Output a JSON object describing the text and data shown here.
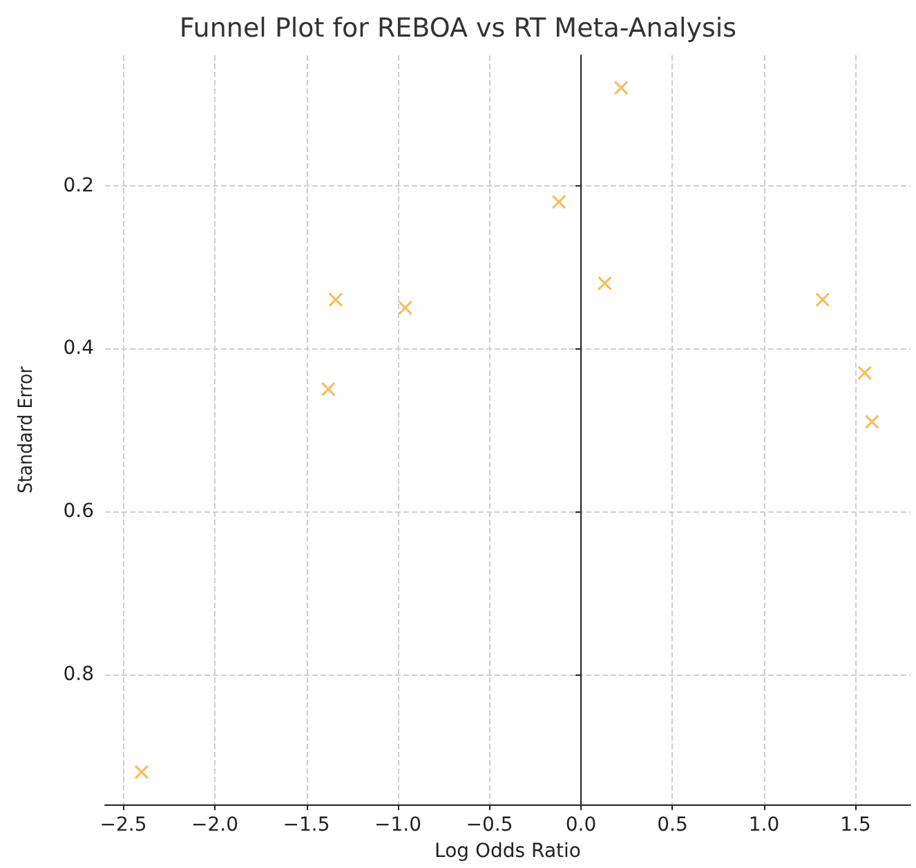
{
  "chart_data": {
    "type": "scatter",
    "title": "Funnel Plot for REBOA vs RT Meta-Analysis",
    "xlabel": "Log Odds Ratio",
    "ylabel": "Standard Error",
    "x": [
      -2.4,
      -1.38,
      -1.34,
      -0.96,
      -0.12,
      0.13,
      0.22,
      1.32,
      1.55,
      1.59
    ],
    "series": [
      {
        "color": "#f0b030",
        "values": [
          0.92,
          0.45,
          0.34,
          0.35,
          0.22,
          0.32,
          0.08,
          0.34,
          0.43,
          0.49
        ]
      }
    ],
    "xlim": [
      -2.6,
      1.8
    ],
    "xticks": [
      {
        "value": -2.5,
        "label": "−2.5"
      },
      {
        "value": -2.0,
        "label": "−2.0"
      },
      {
        "value": -1.5,
        "label": "−1.5"
      },
      {
        "value": -1.0,
        "label": "−1.0"
      },
      {
        "value": -0.5,
        "label": "−0.5"
      },
      {
        "value": 0,
        "label": "0.0"
      },
      {
        "value": 0.5,
        "label": "0.5"
      },
      {
        "value": 1.0,
        "label": "1.0"
      },
      {
        "value": 1.5,
        "label": "1.5"
      }
    ],
    "ylim": [
      0.96,
      0.04
    ],
    "yticks": [
      {
        "value": 0.2,
        "label": "0.2"
      },
      {
        "value": 0.4,
        "label": "0.4"
      },
      {
        "value": 0.6,
        "label": "0.6"
      },
      {
        "value": 0.8,
        "label": "0.8"
      }
    ],
    "grid": true,
    "marker": "cross"
  }
}
